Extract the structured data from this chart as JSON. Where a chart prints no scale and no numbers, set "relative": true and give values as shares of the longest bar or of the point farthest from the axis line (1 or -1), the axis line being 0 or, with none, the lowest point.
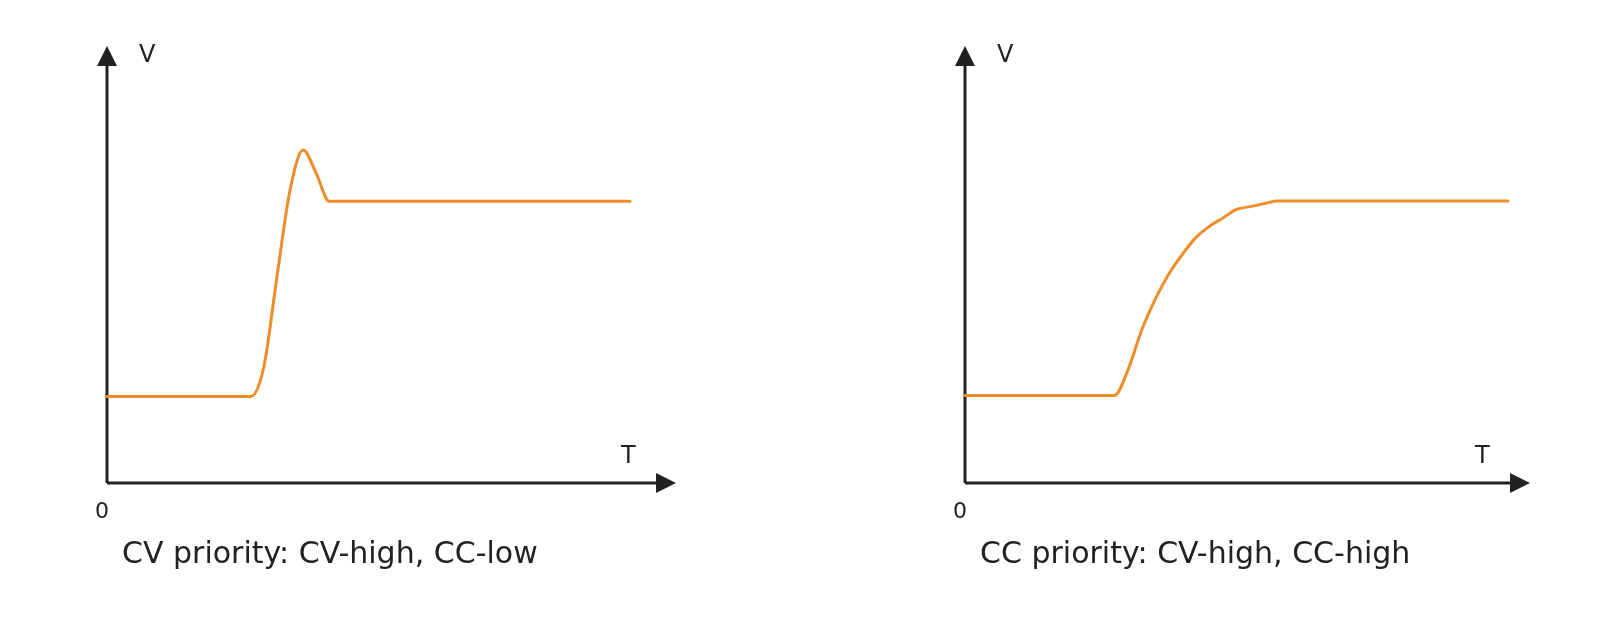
{
  "chart_data": [
    {
      "type": "line",
      "title": "CV priority: CV-high, CC-low",
      "xlabel": "T",
      "ylabel": "V",
      "annotations": [
        "0"
      ],
      "relative": true,
      "categories": [
        null,
        null,
        null,
        null,
        null,
        null,
        null,
        null,
        null,
        null,
        null,
        null,
        null,
        null,
        null,
        null,
        null,
        null,
        null,
        null,
        null,
        null,
        null,
        null,
        null,
        null,
        null,
        null,
        null,
        null,
        null,
        null,
        null,
        null,
        null,
        null,
        null,
        null,
        null,
        null,
        null
      ],
      "series": [
        {
          "color": "#f08c2a",
          "values": [
            0.26,
            0.26,
            0.26,
            0.26,
            0.26,
            0.26,
            0.26,
            0.26,
            0.26,
            0.26,
            0.26,
            0.26,
            0.35,
            0.62,
            0.88,
            1,
            0.93,
            0.846,
            0.846,
            0.846,
            0.846,
            0.846,
            0.846,
            0.846,
            0.846,
            0.846,
            0.846,
            0.846,
            0.846,
            0.846,
            0.846,
            0.846,
            0.846,
            0.846,
            0.846,
            0.846,
            0.846,
            0.846,
            0.846,
            0.846,
            0.846
          ]
        }
      ]
    },
    {
      "type": "line",
      "title": "CC priority: CV-high, CC-high",
      "xlabel": "T",
      "ylabel": "V",
      "annotations": [
        "0"
      ],
      "relative": true,
      "categories": [
        null,
        null,
        null,
        null,
        null,
        null,
        null,
        null,
        null,
        null,
        null,
        null,
        null,
        null,
        null,
        null,
        null,
        null,
        null,
        null,
        null,
        null,
        null,
        null,
        null,
        null,
        null,
        null,
        null,
        null,
        null,
        null,
        null,
        null,
        null,
        null,
        null,
        null,
        null,
        null,
        null
      ],
      "series": [
        {
          "color": "#f08c2a",
          "values": [
            0.31,
            0.31,
            0.31,
            0.31,
            0.31,
            0.31,
            0.31,
            0.31,
            0.31,
            0.31,
            0.31,
            0.31,
            0.4,
            0.54,
            0.65,
            0.74,
            0.81,
            0.87,
            0.91,
            0.94,
            0.97,
            0.98,
            0.99,
            1,
            1,
            1,
            1,
            1,
            1,
            1,
            1,
            1,
            1,
            1,
            1,
            1,
            1,
            1,
            1,
            1,
            1
          ]
        }
      ]
    }
  ]
}
